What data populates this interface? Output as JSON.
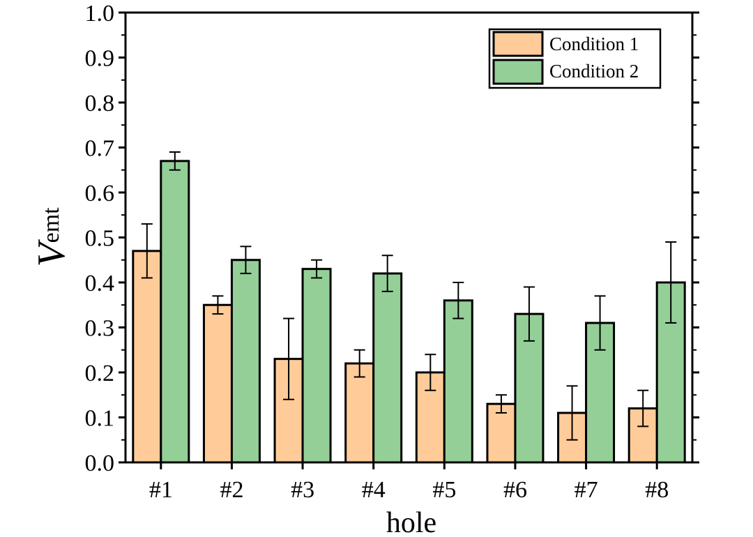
{
  "chart_data": {
    "type": "bar",
    "categories": [
      "#1",
      "#2",
      "#3",
      "#4",
      "#5",
      "#6",
      "#7",
      "#8"
    ],
    "series": [
      {
        "name": "Condition 1",
        "color": "#ffcc99",
        "values": [
          0.47,
          0.35,
          0.23,
          0.22,
          0.2,
          0.13,
          0.11,
          0.12
        ],
        "errors": [
          0.06,
          0.02,
          0.09,
          0.03,
          0.04,
          0.02,
          0.06,
          0.04
        ]
      },
      {
        "name": "Condition 2",
        "color": "#94cf98",
        "values": [
          0.67,
          0.45,
          0.43,
          0.42,
          0.36,
          0.33,
          0.31,
          0.4
        ],
        "errors": [
          0.02,
          0.03,
          0.02,
          0.04,
          0.04,
          0.06,
          0.06,
          0.09
        ]
      }
    ],
    "xlabel": "hole",
    "ylabel_main": "V",
    "ylabel_sub": "emt",
    "ylim": [
      0,
      1.0
    ],
    "yticks": [
      "0.0",
      "0.1",
      "0.2",
      "0.3",
      "0.4",
      "0.5",
      "0.6",
      "0.7",
      "0.8",
      "0.9",
      "1.0"
    ],
    "grid": false,
    "legend_position": "top-right"
  }
}
